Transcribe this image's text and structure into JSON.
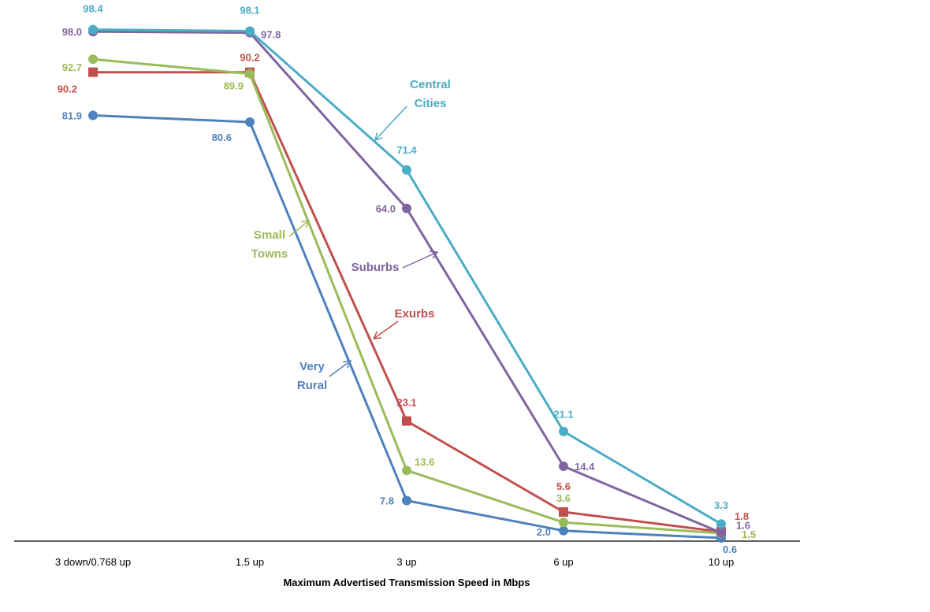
{
  "chart_data": {
    "type": "line",
    "title": "",
    "xlabel": "Maximum Advertised Transmission Speed in Mbps",
    "ylabel": "",
    "categories": [
      "3 down/0.768 up",
      "1.5 up",
      "3 up",
      "6 up",
      "10 up"
    ],
    "ylim": [
      0,
      100
    ],
    "grid": false,
    "legend": "inline labels with arrows",
    "series": [
      {
        "name": "Central Cities",
        "name_lines": [
          "Central",
          "Cities"
        ],
        "color": "#4BACC6",
        "marker": "circle",
        "values": [
          98.4,
          98.1,
          71.4,
          21.1,
          3.3
        ],
        "value_labels": [
          "98.4",
          "98.1",
          "71.4",
          "21.1",
          "3.3"
        ]
      },
      {
        "name": "Suburbs",
        "name_lines": [
          "Suburbs"
        ],
        "color": "#8064A2",
        "marker": "circle",
        "values": [
          98.0,
          97.8,
          64.0,
          14.4,
          1.6
        ],
        "value_labels": [
          "98.0",
          "97.8",
          "64.0",
          "14.4",
          "1.6"
        ]
      },
      {
        "name": "Small Towns",
        "name_lines": [
          "Small",
          "Towns"
        ],
        "color": "#9BBB59",
        "marker": "circle",
        "values": [
          92.7,
          89.9,
          13.6,
          3.6,
          1.5
        ],
        "value_labels": [
          "92.7",
          "89.9",
          "13.6",
          "3.6",
          "1.5"
        ]
      },
      {
        "name": "Exurbs",
        "name_lines": [
          "Exurbs"
        ],
        "color": "#C0504D",
        "marker": "square",
        "values": [
          90.2,
          90.2,
          23.1,
          5.6,
          1.8
        ],
        "value_labels": [
          "90.2",
          "90.2",
          "23.1",
          "5.6",
          "1.8"
        ]
      },
      {
        "name": "Very Rural",
        "name_lines": [
          "Very",
          "Rural"
        ],
        "color": "#4F81BD",
        "marker": "circle",
        "values": [
          81.9,
          80.6,
          7.8,
          2.0,
          0.6
        ],
        "value_labels": [
          "81.9",
          "80.6",
          "7.8",
          "2.0",
          "0.6"
        ]
      }
    ]
  }
}
